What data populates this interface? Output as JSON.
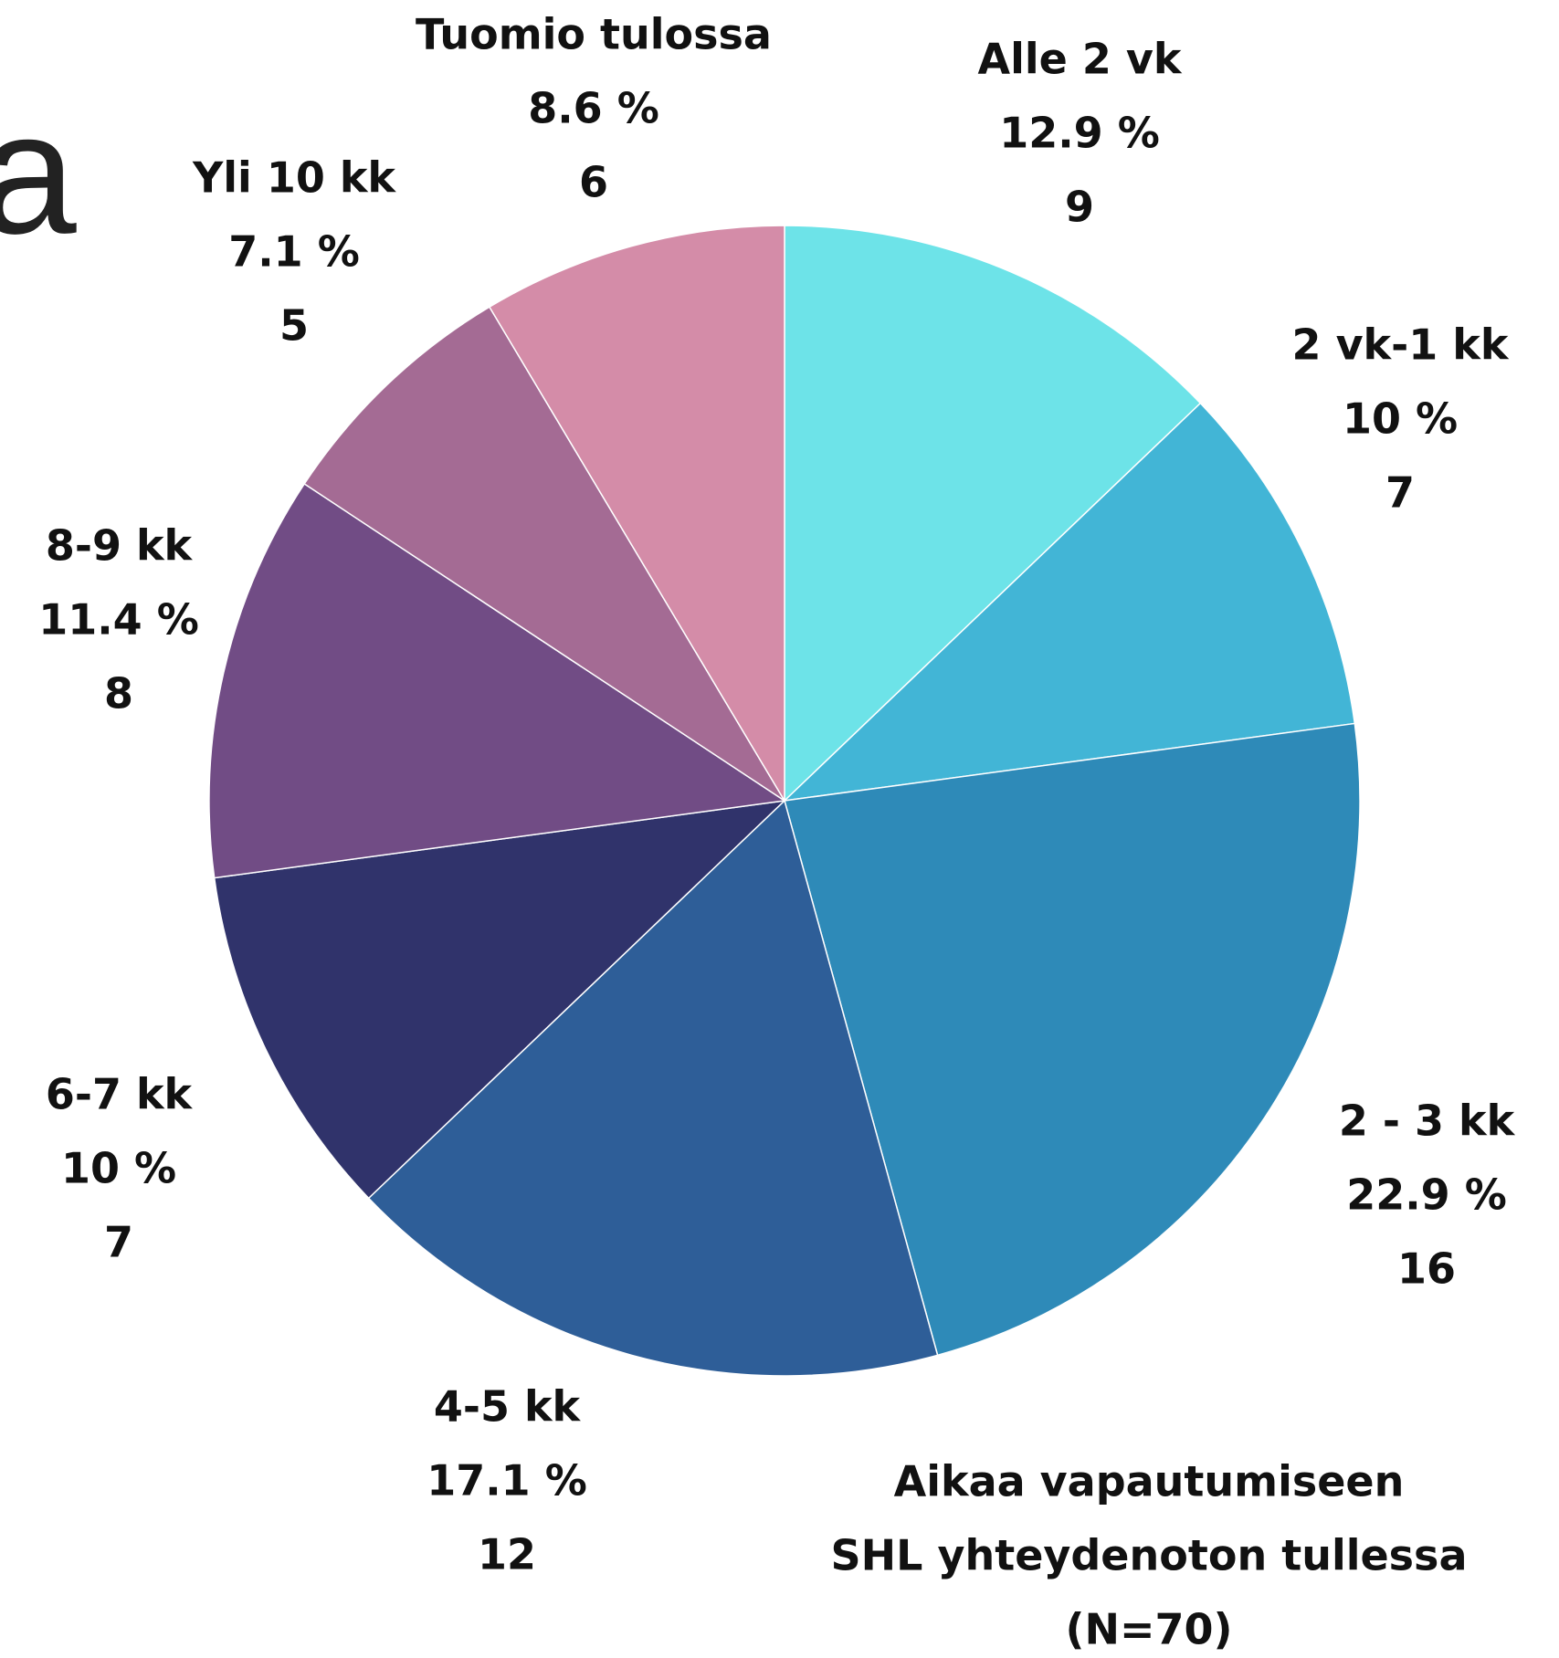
{
  "chart_data": {
    "type": "pie",
    "background_text": "a",
    "title_lines": [
      "Aikaa vapautumiseen",
      "SHL yhteydenoton tullessa",
      "(N=70)"
    ],
    "categories": [
      "Alle 2 vk",
      "2 vk-1 kk",
      "2 - 3 kk",
      "4-5 kk",
      "6-7  kk",
      "8-9  kk",
      "Yli 10  kk",
      "Tuomio tulossa"
    ],
    "values": [
      9,
      7,
      16,
      12,
      7,
      8,
      5,
      6
    ],
    "percents": [
      12.9,
      10,
      22.9,
      17.1,
      10,
      11.4,
      7.1,
      8.6
    ],
    "percent_labels": [
      "12.9 %",
      "10 %",
      "22.9 %",
      "17.1 %",
      "10 %",
      "11.4 %",
      "7.1 %",
      "8.6 %"
    ],
    "colors": [
      "#6de3e8",
      "#42b5d6",
      "#2e8ab8",
      "#2e5e98",
      "#30336b",
      "#714c85",
      "#a46b94",
      "#d48ca8"
    ]
  }
}
